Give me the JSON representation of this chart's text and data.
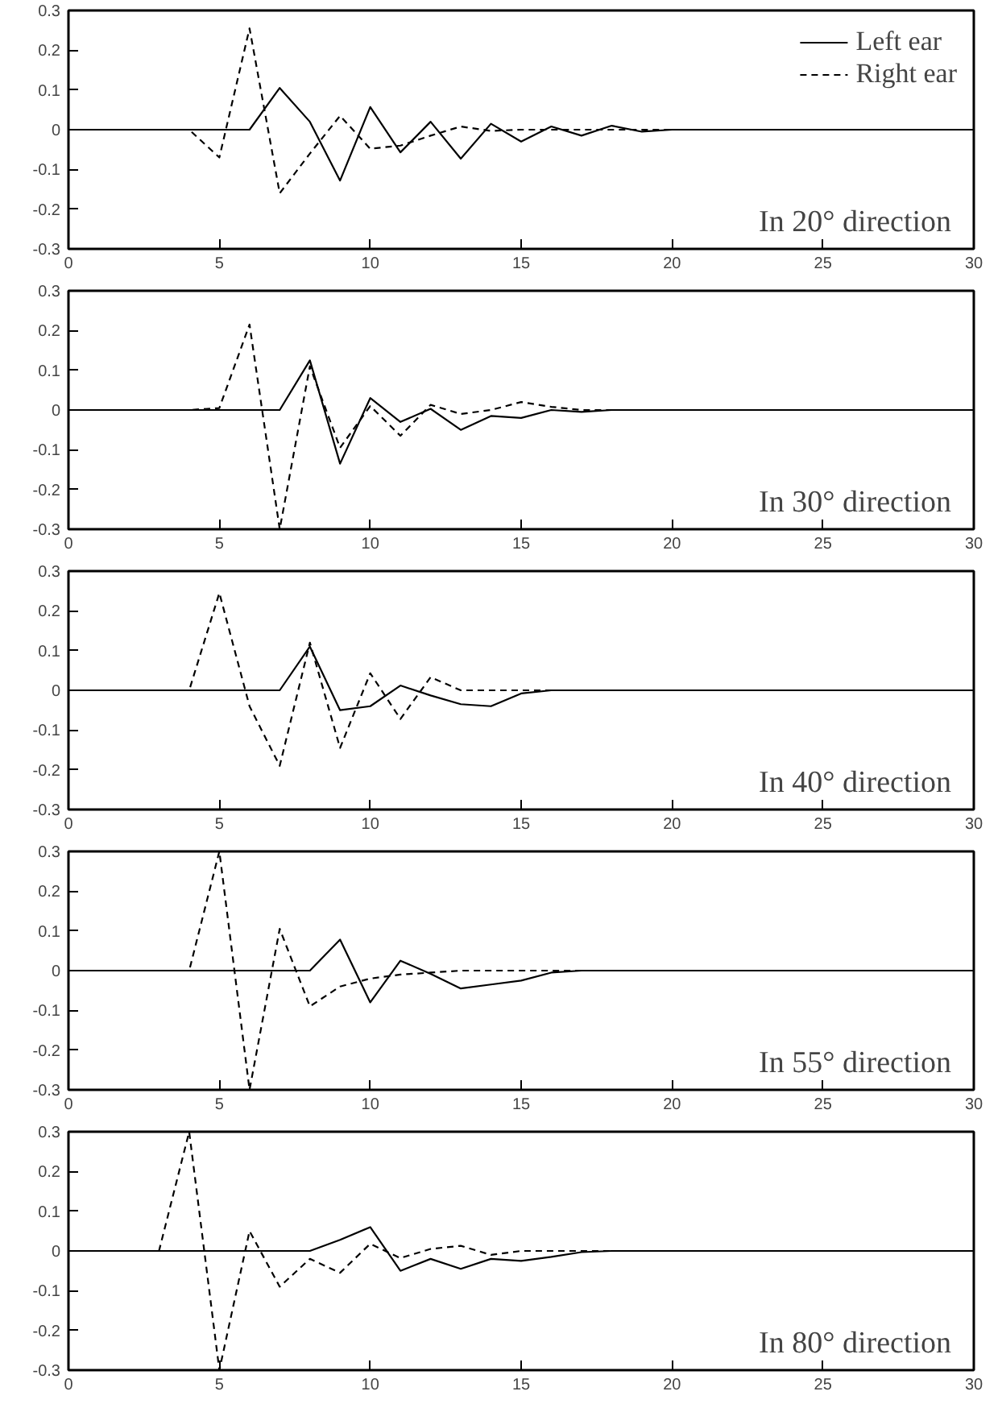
{
  "chart_data": [
    {
      "type": "line",
      "x": [
        0,
        1,
        2,
        3,
        4,
        5,
        6,
        7,
        8,
        9,
        10,
        11,
        12,
        13,
        14,
        15,
        16,
        17,
        18,
        19,
        20,
        21,
        22,
        23,
        24,
        25,
        26,
        27,
        28,
        29,
        30
      ],
      "xlim": [
        0,
        30
      ],
      "xticks": [
        0,
        5,
        10,
        15,
        20,
        25,
        30
      ],
      "ylim": [
        -0.3,
        0.3
      ],
      "yticks": [
        -0.3,
        -0.2,
        -0.1,
        0,
        0.1,
        0.2,
        0.3
      ],
      "grid": false,
      "legend": "top right",
      "annotations": [
        "In 20° direction"
      ],
      "series": [
        {
          "name": "Left ear",
          "color": "#000000",
          "line_style": "solid",
          "values": [
            0,
            0,
            0,
            0,
            0,
            0,
            0,
            0.105,
            0.02,
            -0.128,
            0.057,
            -0.057,
            0.02,
            -0.073,
            0.015,
            -0.03,
            0.008,
            -0.015,
            0.01,
            -0.005,
            0,
            0,
            0,
            0,
            0,
            0,
            0,
            0,
            0,
            0,
            0
          ]
        },
        {
          "name": "Right ear",
          "color": "#000000",
          "line_style": "dashed",
          "values": [
            0,
            0,
            0,
            0,
            0,
            -0.07,
            0.255,
            -0.16,
            -0.06,
            0.035,
            -0.048,
            -0.04,
            -0.015,
            0.008,
            -0.003,
            0,
            0,
            0,
            0,
            0,
            0,
            0,
            0,
            0,
            0,
            0,
            0,
            0,
            0,
            0,
            0
          ]
        }
      ]
    },
    {
      "type": "line",
      "x": [
        0,
        1,
        2,
        3,
        4,
        5,
        6,
        7,
        8,
        9,
        10,
        11,
        12,
        13,
        14,
        15,
        16,
        17,
        18,
        19,
        20,
        21,
        22,
        23,
        24,
        25,
        26,
        27,
        28,
        29,
        30
      ],
      "xlim": [
        0,
        30
      ],
      "xticks": [
        0,
        5,
        10,
        15,
        20,
        25,
        30
      ],
      "ylim": [
        -0.3,
        0.3
      ],
      "yticks": [
        -0.3,
        -0.2,
        -0.1,
        0,
        0.1,
        0.2,
        0.3
      ],
      "grid": false,
      "annotations": [
        "In 30° direction"
      ],
      "series": [
        {
          "color": "#000000",
          "line_style": "solid",
          "values": [
            0,
            0,
            0,
            0,
            0,
            0,
            0,
            0,
            0.125,
            -0.135,
            0.03,
            -0.03,
            0.003,
            -0.05,
            -0.015,
            -0.02,
            0,
            -0.005,
            0,
            0,
            0,
            0,
            0,
            0,
            0,
            0,
            0,
            0,
            0,
            0,
            0
          ]
        },
        {
          "color": "#000000",
          "line_style": "dashed",
          "values": [
            0,
            0,
            0,
            0,
            0,
            0.005,
            0.215,
            -0.3,
            0.11,
            -0.095,
            0.01,
            -0.065,
            0.013,
            -0.01,
            0,
            0.02,
            0.008,
            0,
            0,
            0,
            0,
            0,
            0,
            0,
            0,
            0,
            0,
            0,
            0,
            0,
            0
          ]
        }
      ]
    },
    {
      "type": "line",
      "x": [
        0,
        1,
        2,
        3,
        4,
        5,
        6,
        7,
        8,
        9,
        10,
        11,
        12,
        13,
        14,
        15,
        16,
        17,
        18,
        19,
        20,
        21,
        22,
        23,
        24,
        25,
        26,
        27,
        28,
        29,
        30
      ],
      "xlim": [
        0,
        30
      ],
      "xticks": [
        0,
        5,
        10,
        15,
        20,
        25,
        30
      ],
      "ylim": [
        -0.3,
        0.3
      ],
      "yticks": [
        -0.3,
        -0.2,
        -0.1,
        0,
        0.1,
        0.2,
        0.3
      ],
      "grid": false,
      "annotations": [
        "In 40° direction"
      ],
      "series": [
        {
          "color": "#000000",
          "line_style": "solid",
          "values": [
            0,
            0,
            0,
            0,
            0,
            0,
            0,
            0,
            0.11,
            -0.05,
            -0.04,
            0.012,
            -0.013,
            -0.035,
            -0.04,
            -0.008,
            0,
            0,
            0,
            0,
            0,
            0,
            0,
            0,
            0,
            0,
            0,
            0,
            0,
            0,
            0
          ]
        },
        {
          "color": "#000000",
          "line_style": "dashed",
          "values": [
            0,
            0,
            0,
            0,
            0,
            0.245,
            -0.04,
            -0.19,
            0.12,
            -0.145,
            0.043,
            -0.072,
            0.033,
            0,
            0,
            0,
            0,
            0,
            0,
            0,
            0,
            0,
            0,
            0,
            0,
            0,
            0,
            0,
            0,
            0,
            0
          ]
        }
      ]
    },
    {
      "type": "line",
      "x": [
        0,
        1,
        2,
        3,
        4,
        5,
        6,
        7,
        8,
        9,
        10,
        11,
        12,
        13,
        14,
        15,
        16,
        17,
        18,
        19,
        20,
        21,
        22,
        23,
        24,
        25,
        26,
        27,
        28,
        29,
        30
      ],
      "xlim": [
        0,
        30
      ],
      "xticks": [
        0,
        5,
        10,
        15,
        20,
        25,
        30
      ],
      "ylim": [
        -0.3,
        0.3
      ],
      "yticks": [
        -0.3,
        -0.2,
        -0.1,
        0,
        0.1,
        0.2,
        0.3
      ],
      "grid": false,
      "annotations": [
        "In 55° direction"
      ],
      "series": [
        {
          "color": "#000000",
          "line_style": "solid",
          "values": [
            0,
            0,
            0,
            0,
            0,
            0,
            0,
            0,
            0,
            0.078,
            -0.08,
            0.025,
            -0.008,
            -0.045,
            -0.035,
            -0.025,
            -0.005,
            0,
            0,
            0,
            0,
            0,
            0,
            0,
            0,
            0,
            0,
            0,
            0,
            0,
            0
          ]
        },
        {
          "color": "#000000",
          "line_style": "dashed",
          "values": [
            0,
            0,
            0,
            0,
            0,
            0.3,
            -0.3,
            0.105,
            -0.09,
            -0.04,
            -0.02,
            -0.01,
            -0.005,
            0,
            0,
            0,
            0,
            0,
            0,
            0,
            0,
            0,
            0,
            0,
            0,
            0,
            0,
            0,
            0,
            0,
            0
          ]
        }
      ]
    },
    {
      "type": "line",
      "x": [
        0,
        1,
        2,
        3,
        4,
        5,
        6,
        7,
        8,
        9,
        10,
        11,
        12,
        13,
        14,
        15,
        16,
        17,
        18,
        19,
        20,
        21,
        22,
        23,
        24,
        25,
        26,
        27,
        28,
        29,
        30
      ],
      "xlim": [
        0,
        30
      ],
      "xticks": [
        0,
        5,
        10,
        15,
        20,
        25,
        30
      ],
      "ylim": [
        -0.3,
        0.3
      ],
      "yticks": [
        -0.3,
        -0.2,
        -0.1,
        0,
        0.1,
        0.2,
        0.3
      ],
      "grid": false,
      "annotations": [
        "In 80° direction"
      ],
      "series": [
        {
          "color": "#000000",
          "line_style": "solid",
          "values": [
            0,
            0,
            0,
            0,
            0,
            0,
            0,
            0,
            0,
            0.028,
            0.06,
            -0.05,
            -0.02,
            -0.045,
            -0.02,
            -0.025,
            -0.015,
            -0.003,
            0,
            0,
            0,
            0,
            0,
            0,
            0,
            0,
            0,
            0,
            0,
            0,
            0
          ]
        },
        {
          "color": "#000000",
          "line_style": "dashed",
          "values": [
            0,
            0,
            0,
            0,
            0.3,
            -0.3,
            0.05,
            -0.09,
            -0.02,
            -0.055,
            0.018,
            -0.018,
            0.005,
            0.013,
            -0.01,
            0,
            0,
            0,
            0,
            0,
            0,
            0,
            0,
            0,
            0,
            0,
            0,
            0,
            0,
            0,
            0
          ]
        }
      ]
    }
  ]
}
